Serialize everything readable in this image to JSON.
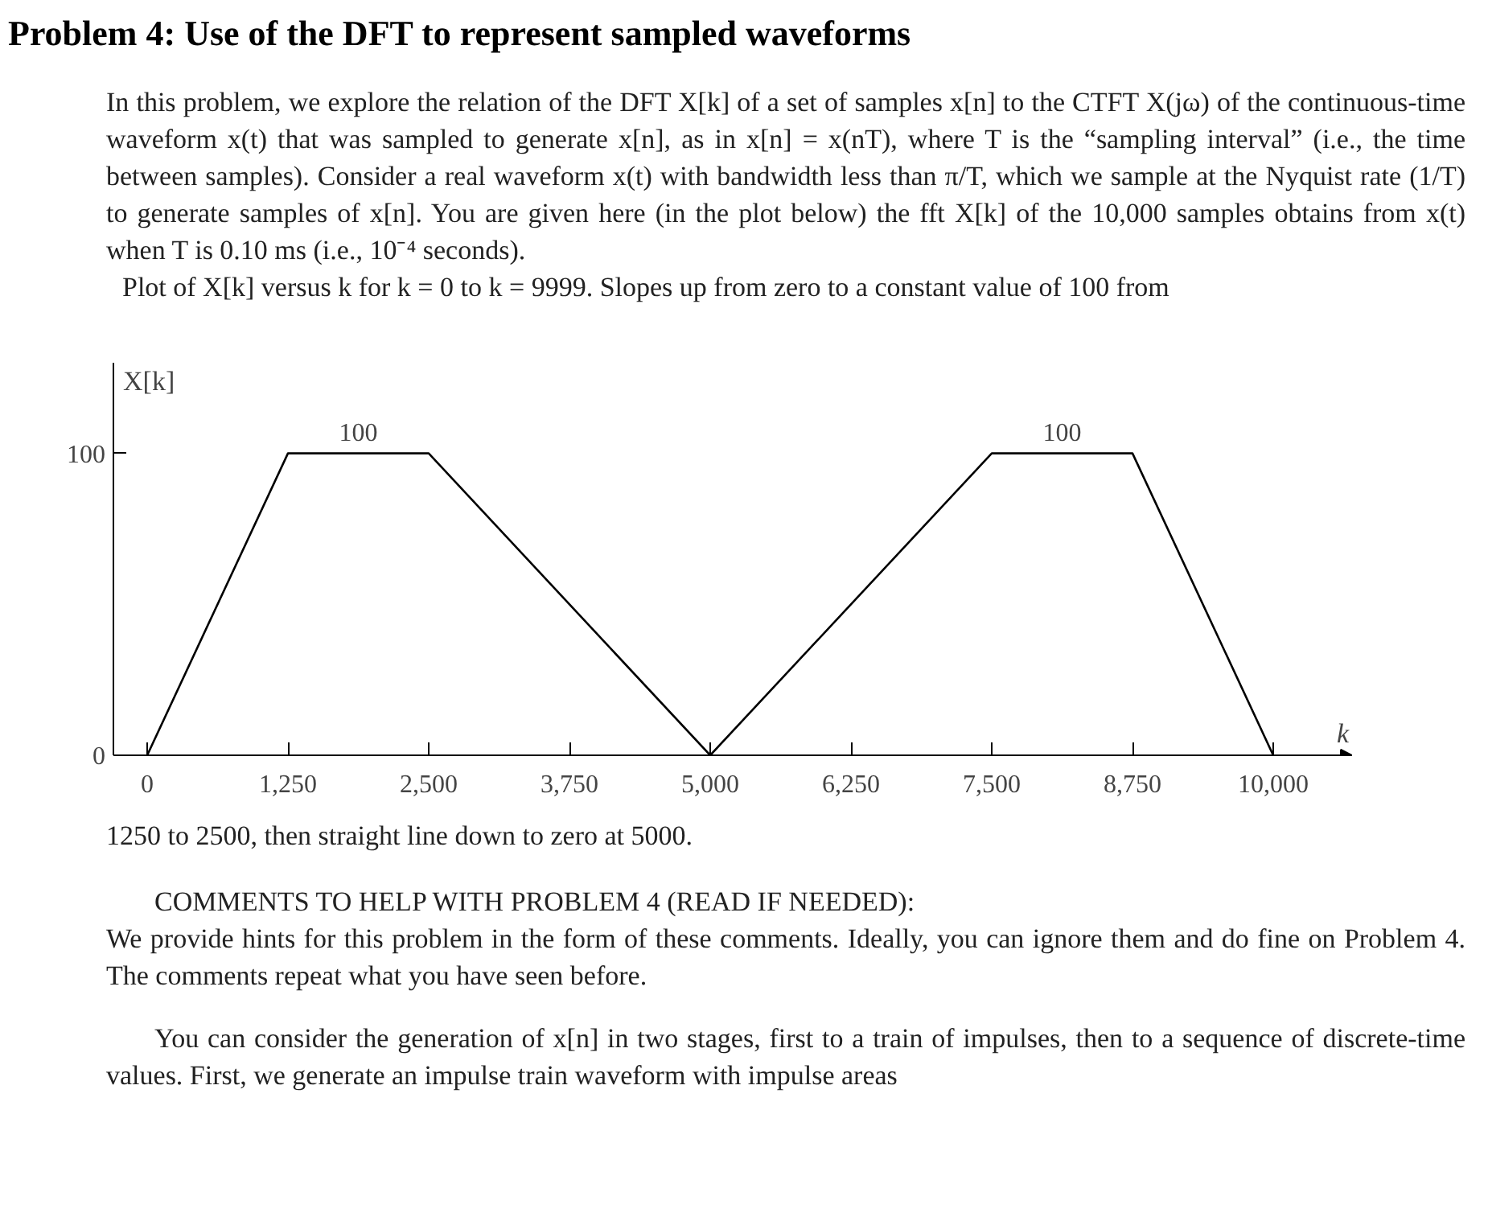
{
  "chart_data": {
    "type": "line",
    "title": "Problem 4: Use of the DFT to represent sampled waveforms",
    "subtitle": "In this problem, we explore the relation of the DFT X[k] of a set of samples x[n] to the CTFT X(jω) of the continuous-time waveform x(t) that was sampled to generate x[n], as in x[n] = x(nT), where T is the “sampling interval” (i.e., the time between samples). Consider a real waveform x(t) with bandwidth less than π/T, which we sample at the Nyquist rate (1/T) to generate samples of x[n]. You are given here (in the plot below) the fft X[k] of the 10,000 samples obtains from x(t) when T is 0.10 ms (i.e., 10⁻⁴ seconds).\nPlot of X[k] versus k for k = 0 to k = 9999. Slopes up from zero to a constant value of 100 from",
    "xlabel": "k",
    "ylabel": "X[k]",
    "x": [
      0,
      1250,
      2500,
      5000,
      7500,
      8750,
      10000
    ],
    "values": [
      0,
      100,
      100,
      0,
      100,
      100,
      0
    ],
    "color": "#000000",
    "xlim": [
      -300,
      10700
    ],
    "ylim": [
      0,
      130
    ],
    "xticks": [
      {
        "value": 0,
        "label": "0"
      },
      {
        "value": 1250,
        "label": "1,250"
      },
      {
        "value": 2500,
        "label": "2,500"
      },
      {
        "value": 3750,
        "label": "3,750"
      },
      {
        "value": 5000,
        "label": "5,000"
      },
      {
        "value": 6250,
        "label": "6,250"
      },
      {
        "value": 7500,
        "label": "7,500"
      },
      {
        "value": 8750,
        "label": "8,750"
      },
      {
        "value": 10000,
        "label": "10,000"
      }
    ],
    "yticks": [
      0,
      100
    ],
    "grid": false,
    "annotations": [
      {
        "text": "100",
        "x": 1875,
        "y": 100
      },
      {
        "text": "100",
        "x": 8125,
        "y": 100
      },
      "1250 to 2500, then straight line down to zero at 5000.",
      "COMMENTS TO HELP WITH PROBLEM 4 (READ IF NEEDED):",
      "We provide hints for this problem in the form of these comments. Ideally, you can ignore them and do fine on Problem 4. The comments repeat what you have seen before.",
      "You can consider the generation of x[n] in two stages, first to a train of impulses, then to a sequence of discrete-time values. First, we generate an impulse train waveform with impulse areas"
    ]
  }
}
